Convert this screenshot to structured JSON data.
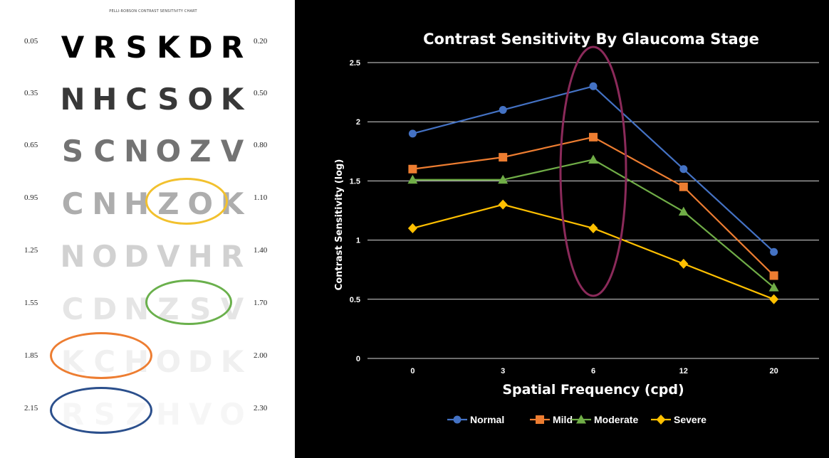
{
  "eye_chart": {
    "header": "PELLI-ROBSON CONTRAST SENSITIVITY CHART",
    "rows": [
      {
        "left": "0.05",
        "right": "0.20",
        "letters": [
          "V",
          "R",
          "S",
          "K",
          "D",
          "R"
        ],
        "opacity": 1.0
      },
      {
        "left": "0.35",
        "right": "0.50",
        "letters": [
          "N",
          "H",
          "C",
          "S",
          "O",
          "K"
        ],
        "opacity": 0.78
      },
      {
        "left": "0.65",
        "right": "0.80",
        "letters": [
          "S",
          "C",
          "N",
          "O",
          "Z",
          "V"
        ],
        "opacity": 0.55
      },
      {
        "left": "0.95",
        "right": "1.10",
        "letters": [
          "C",
          "N",
          "H",
          "Z",
          "O",
          "K"
        ],
        "opacity": 0.32
      },
      {
        "left": "1.25",
        "right": "1.40",
        "letters": [
          "N",
          "O",
          "D",
          "V",
          "H",
          "R"
        ],
        "opacity": 0.18
      },
      {
        "left": "1.55",
        "right": "1.70",
        "letters": [
          "C",
          "D",
          "N",
          "Z",
          "S",
          "V"
        ],
        "opacity": 0.1
      },
      {
        "left": "1.85",
        "right": "2.00",
        "letters": [
          "K",
          "C",
          "H",
          "O",
          "D",
          "K"
        ],
        "opacity": 0.06
      },
      {
        "left": "2.15",
        "right": "2.30",
        "letters": [
          "R",
          "S",
          "Z",
          "H",
          "V",
          "O"
        ],
        "opacity": 0.035
      }
    ],
    "highlights": [
      {
        "label": "Normal",
        "color": "#f2c12e"
      },
      {
        "label": "Mild",
        "color": "#6ab04c"
      },
      {
        "label": "Moderate",
        "color": "#ed7d31"
      },
      {
        "label": "Severe",
        "color": "#2b4f8c"
      }
    ]
  },
  "chart_data": {
    "type": "line",
    "title": "Contrast Sensitivity By Glaucoma Stage",
    "xlabel": "Spatial Frequency (cpd)",
    "ylabel": "Contrast Sensitivity (log)",
    "categories": [
      "0",
      "3",
      "6",
      "12",
      "20"
    ],
    "ylim": [
      0,
      2.5
    ],
    "yticks": [
      "0",
      "0.5",
      "1",
      "1.5",
      "2",
      "2.5"
    ],
    "grid": true,
    "legend_position": "bottom",
    "highlight": {
      "category": "6",
      "color": "#8b2a5a"
    },
    "series": [
      {
        "name": "Normal",
        "color": "#4472c4",
        "marker": "circle",
        "values": [
          1.9,
          2.1,
          2.3,
          1.6,
          0.9
        ]
      },
      {
        "name": "Mild",
        "color": "#ed7d31",
        "marker": "square",
        "values": [
          1.6,
          1.7,
          1.87,
          1.45,
          0.7
        ]
      },
      {
        "name": "Moderate",
        "color": "#70ad47",
        "marker": "triangle",
        "values": [
          1.51,
          1.51,
          1.68,
          1.24,
          0.6
        ]
      },
      {
        "name": "Severe",
        "color": "#ffc000",
        "marker": "diamond",
        "values": [
          1.1,
          1.3,
          1.1,
          0.8,
          0.5
        ]
      }
    ]
  }
}
